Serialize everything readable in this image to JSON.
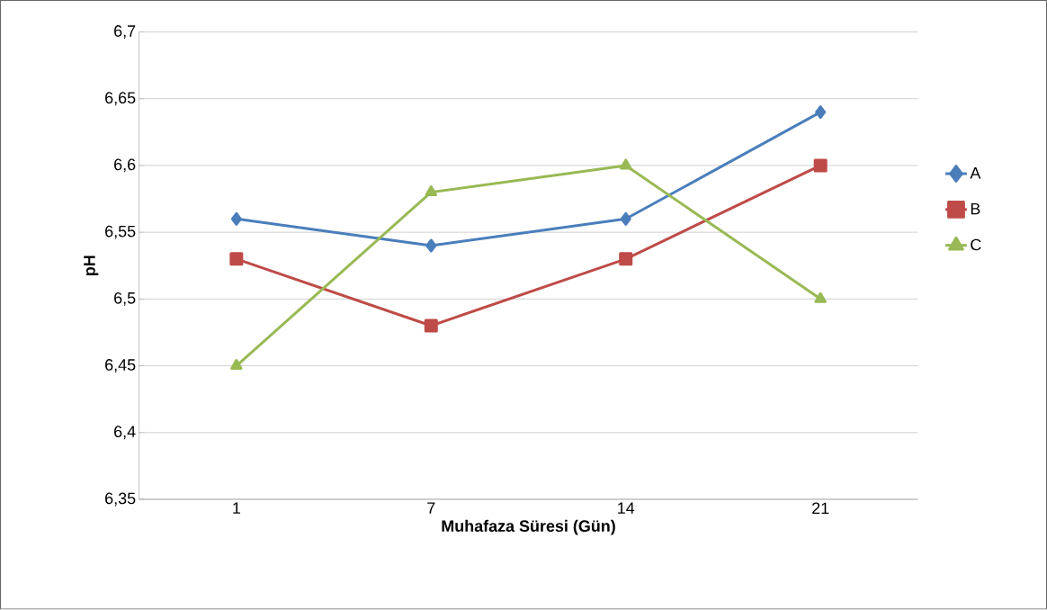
{
  "chart_data": {
    "type": "line",
    "xlabel": "Muhafaza Süresi (Gün)",
    "ylabel": "pH",
    "categories": [
      "1",
      "7",
      "14",
      "21"
    ],
    "series": [
      {
        "name": "A",
        "color": "#4a7ebb",
        "marker": "diamond",
        "values": [
          6.56,
          6.54,
          6.56,
          6.64
        ]
      },
      {
        "name": "B",
        "color": "#be4b48",
        "marker": "square",
        "values": [
          6.53,
          6.48,
          6.53,
          6.6
        ]
      },
      {
        "name": "C",
        "color": "#98b954",
        "marker": "triangle",
        "values": [
          6.45,
          6.58,
          6.6,
          6.5
        ]
      }
    ],
    "ylim": [
      6.35,
      6.7
    ],
    "yticks": [
      {
        "value": 6.35,
        "label": "6,35"
      },
      {
        "value": 6.4,
        "label": "6,4"
      },
      {
        "value": 6.45,
        "label": "6,45"
      },
      {
        "value": 6.5,
        "label": "6,5"
      },
      {
        "value": 6.55,
        "label": "6,55"
      },
      {
        "value": 6.6,
        "label": "6,6"
      },
      {
        "value": 6.65,
        "label": "6,65"
      },
      {
        "value": 6.7,
        "label": "6,7"
      }
    ],
    "grid": "y",
    "legend": "right",
    "line_style": "solid"
  }
}
